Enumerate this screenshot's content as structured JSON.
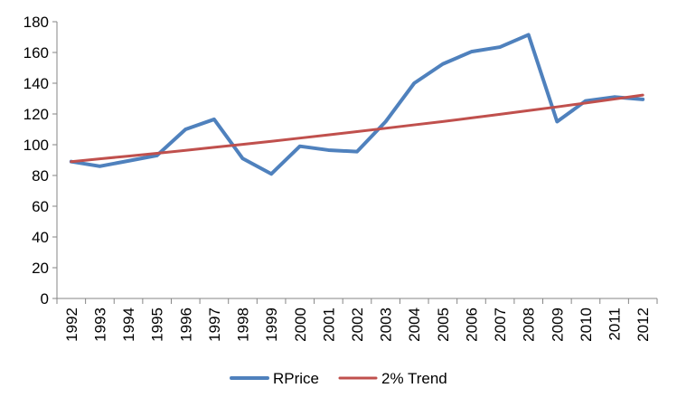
{
  "chart_data": {
    "type": "line",
    "title": "",
    "xlabel": "",
    "ylabel": "",
    "categories": [
      "1992",
      "1993",
      "1994",
      "1995",
      "1996",
      "1997",
      "1998",
      "1999",
      "2000",
      "2001",
      "2002",
      "2003",
      "2004",
      "2005",
      "2006",
      "2007",
      "2008",
      "2009",
      "2010",
      "2011",
      "2012"
    ],
    "ylim": [
      0,
      180
    ],
    "yticks": [
      0,
      20,
      40,
      60,
      80,
      100,
      120,
      140,
      160,
      180
    ],
    "grid": false,
    "legend_position": "bottom",
    "series": [
      {
        "name": "RPrice",
        "color": "#4F81BD",
        "values": [
          89,
          86,
          89.5,
          93,
          110,
          116.5,
          91,
          81,
          99,
          96.5,
          95.5,
          115,
          140,
          152.5,
          160.5,
          163.5,
          171.5,
          115,
          128.5,
          131,
          129.5
        ]
      },
      {
        "name": "2% Trend",
        "color": "#C0504D",
        "values": [
          89,
          90.8,
          92.6,
          94.4,
          96.3,
          98.3,
          100.2,
          102.2,
          104.3,
          106.4,
          108.5,
          110.7,
          112.9,
          115.1,
          117.4,
          119.8,
          122.2,
          124.6,
          127.1,
          129.7,
          132.3
        ]
      }
    ]
  }
}
